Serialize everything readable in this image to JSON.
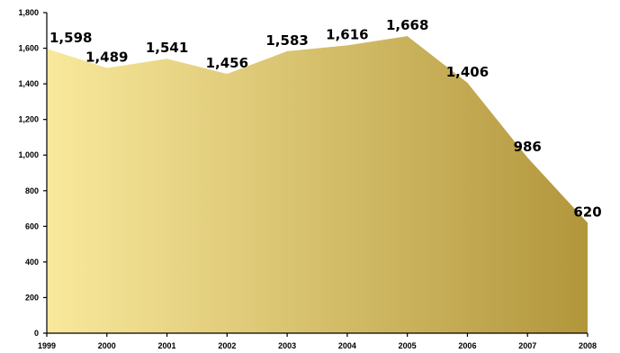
{
  "chart_data": {
    "type": "area",
    "title": "",
    "xlabel": "",
    "ylabel": "",
    "x": [
      "1999",
      "2000",
      "2001",
      "2002",
      "2003",
      "2004",
      "2005",
      "2006",
      "2007",
      "2008"
    ],
    "series": [
      {
        "values": [
          1598,
          1489,
          1541,
          1456,
          1583,
          1616,
          1668,
          1406,
          986,
          620
        ],
        "data_labels": [
          "1,598",
          "1,489",
          "1,541",
          "1,456",
          "1,583",
          "1,616",
          "1,668",
          "1,406",
          "986",
          "620"
        ]
      }
    ],
    "ylim": [
      0,
      1800
    ],
    "y_ticks": [
      0,
      200,
      400,
      600,
      800,
      1000,
      1200,
      1400,
      1600,
      1800
    ],
    "y_tick_labels": [
      "0",
      "200",
      "400",
      "600",
      "800",
      "1,000",
      "1,200",
      "1,400",
      "1,600",
      "1,800"
    ],
    "grid": false,
    "legend": "none",
    "colors": {
      "fill_start": "#F9E99C",
      "fill_end": "#B2963C",
      "axis": "#000000",
      "text": "#000000"
    }
  }
}
